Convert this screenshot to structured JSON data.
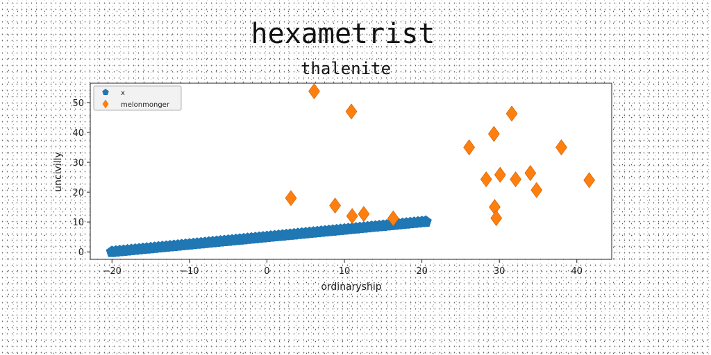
{
  "chart_data": {
    "type": "scatter",
    "title": "hexametrist",
    "subtitle": "thalenite",
    "xlabel": "ordinaryship",
    "ylabel": "uncivilly",
    "xlim": [
      -22.8,
      44.5
    ],
    "ylim": [
      -2.5,
      56.5
    ],
    "xticks": [
      -20,
      -10,
      0,
      10,
      20,
      30,
      40
    ],
    "yticks": [
      0,
      10,
      20,
      30,
      40,
      50
    ],
    "xtick_labels": [
      "−20",
      "−10",
      "0",
      "10",
      "20",
      "30",
      "40"
    ],
    "ytick_labels": [
      "0",
      "10",
      "20",
      "30",
      "40",
      "50"
    ],
    "grid": false,
    "legend": {
      "position": "top-left",
      "entries": [
        {
          "label": "x",
          "marker": "pentagon",
          "color": "#1f77b4"
        },
        {
          "label": "melonmonger",
          "marker": "diamond",
          "color": "#ff7f0e"
        }
      ]
    },
    "series": [
      {
        "name": "x",
        "marker": "pentagon",
        "color": "#1f77b4",
        "x_start": -20,
        "x_end": 20.5,
        "x_step": 0.5,
        "slope": 0.25,
        "intercept": 5
      },
      {
        "name": "melonmonger",
        "marker": "diamond",
        "color": "#ff7f0e",
        "points": [
          [
            3.1,
            18.0
          ],
          [
            6.1,
            53.8
          ],
          [
            8.8,
            15.5
          ],
          [
            10.9,
            47.0
          ],
          [
            11.0,
            12.0
          ],
          [
            12.5,
            12.7
          ],
          [
            16.3,
            11.2
          ],
          [
            26.1,
            35.0
          ],
          [
            28.3,
            24.3
          ],
          [
            29.3,
            39.5
          ],
          [
            29.4,
            15.0
          ],
          [
            29.6,
            11.3
          ],
          [
            30.1,
            25.8
          ],
          [
            31.6,
            46.3
          ],
          [
            32.1,
            24.3
          ],
          [
            34.0,
            26.4
          ],
          [
            34.8,
            20.7
          ],
          [
            38.0,
            35.0
          ],
          [
            41.6,
            24.0
          ]
        ]
      }
    ]
  }
}
